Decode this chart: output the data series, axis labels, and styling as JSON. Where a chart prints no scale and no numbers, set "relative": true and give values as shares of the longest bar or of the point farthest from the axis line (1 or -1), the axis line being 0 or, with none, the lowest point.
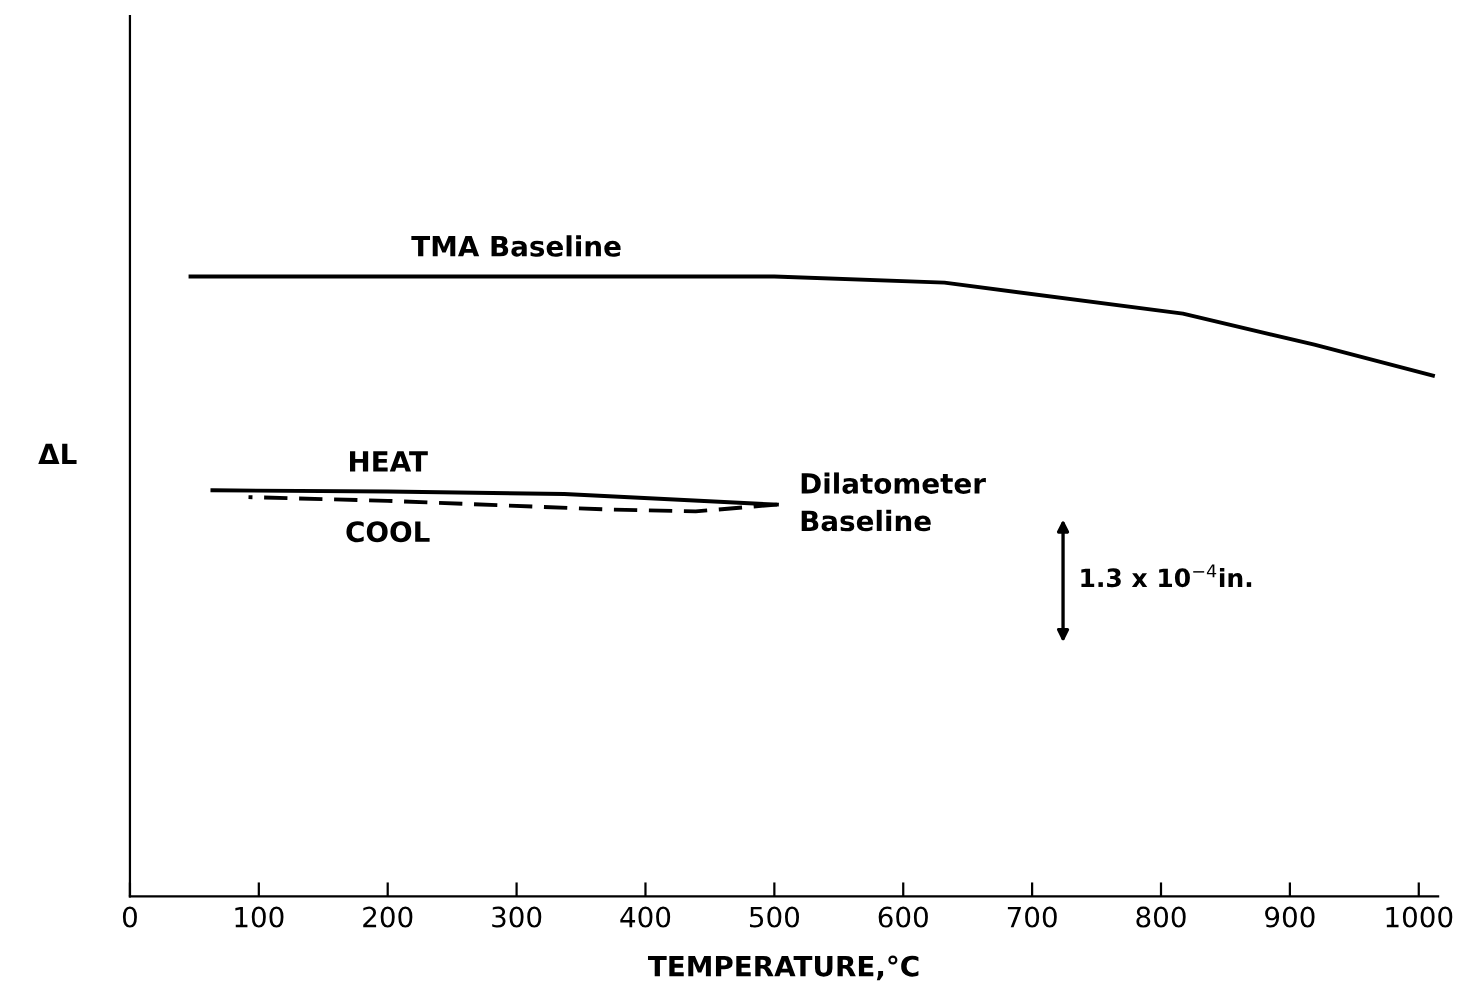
{
  "chart_data": {
    "type": "line",
    "relative": true,
    "xlabel": "TEMPERATURE,°C",
    "ylabel": "ΔL",
    "xlim": [
      0,
      1015
    ],
    "xticks": [
      0,
      100,
      200,
      300,
      400,
      500,
      600,
      700,
      800,
      900,
      1000
    ],
    "tick_labels": "x",
    "grid": false,
    "legend": false,
    "marker": "none",
    "series": [
      {
        "name": "TMA Baseline",
        "color": "#000000",
        "line_style": "solid",
        "x": [
          47,
          300,
          500,
          632,
          817,
          919,
          1011
        ],
        "values": [
          1.0,
          1.0,
          1.0,
          0.99,
          0.94,
          0.89,
          0.84
        ]
      },
      {
        "name": "HEAT",
        "color": "#000000",
        "line_style": "solid",
        "x": [
          64,
          200,
          337,
          502
        ],
        "values": [
          0.655,
          0.653,
          0.649,
          0.632
        ]
      },
      {
        "name": "COOL",
        "color": "#000000",
        "line_style": "dashed",
        "x": [
          502,
          439,
          371,
          200,
          92
        ],
        "values": [
          0.632,
          0.621,
          0.624,
          0.638,
          0.644
        ]
      }
    ],
    "annotations": [
      {
        "text": "Dilatometer\nBaseline",
        "x": 502,
        "y": 0.632
      },
      "1.3 x 10$^{−4}$in."
    ]
  }
}
